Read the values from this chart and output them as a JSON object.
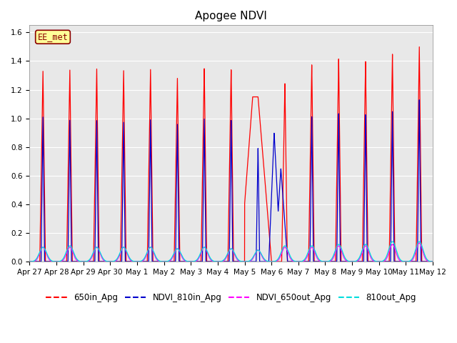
{
  "title": "Apogee NDVI",
  "label_box_text": "EE_met",
  "ylim": [
    0.0,
    1.65
  ],
  "yticks": [
    0.0,
    0.2,
    0.4,
    0.6,
    0.8,
    1.0,
    1.2,
    1.4,
    1.6
  ],
  "xtick_labels": [
    "Apr 27",
    "Apr 28",
    "Apr 29",
    "Apr 30",
    "May 1",
    "May 2",
    "May 3",
    "May 4",
    "May 5",
    "May 6",
    "May 7",
    "May 8",
    "May 9",
    "May 10",
    "May 11",
    "May 12"
  ],
  "colors": {
    "650in_Apg": "#FF0000",
    "NDVI_810in_Apg": "#0000CC",
    "NDVI_650out_Apg": "#FF00FF",
    "810out_Apg": "#00DDDD"
  },
  "background_color": "#E8E8E8",
  "peak_heights_650in": [
    1.33,
    1.34,
    1.35,
    1.34,
    1.35,
    1.29,
    1.36,
    1.35,
    1.14,
    1.25,
    1.38,
    1.42,
    1.4,
    1.45,
    1.5
  ],
  "peak_heights_810in": [
    1.01,
    0.99,
    0.99,
    0.98,
    1.0,
    0.97,
    1.01,
    1.0,
    0.8,
    0.91,
    1.02,
    1.04,
    1.03,
    1.05,
    1.13
  ],
  "peak_heights_650out": [
    0.1,
    0.1,
    0.1,
    0.1,
    0.1,
    0.09,
    0.1,
    0.09,
    0.08,
    0.1,
    0.1,
    0.11,
    0.11,
    0.12,
    0.13
  ],
  "peak_heights_810out": [
    0.1,
    0.11,
    0.1,
    0.1,
    0.1,
    0.09,
    0.1,
    0.09,
    0.08,
    0.11,
    0.11,
    0.12,
    0.12,
    0.14,
    0.14
  ],
  "n_days": 15,
  "points_per_day": 500,
  "title_fontsize": 11,
  "tick_fontsize": 7.5,
  "legend_fontsize": 8.5
}
